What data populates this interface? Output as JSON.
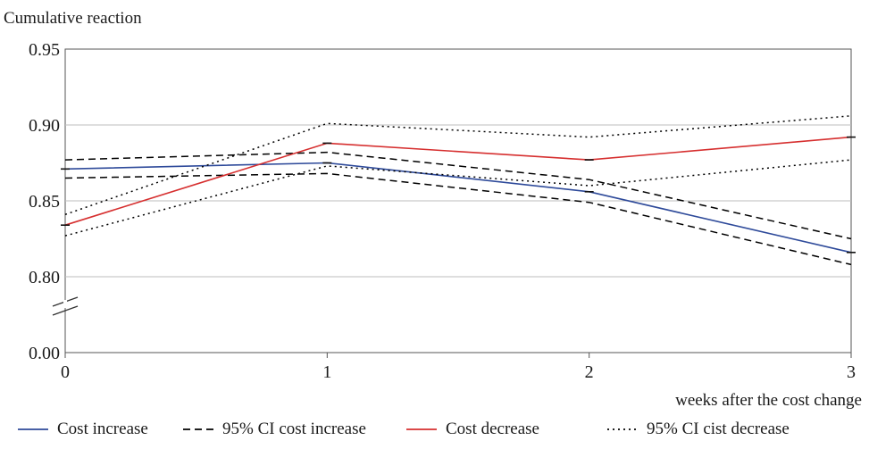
{
  "chart_data": {
    "type": "line",
    "ylabel": "Cumulative reaction",
    "xlabel": "weeks after the cost change",
    "x": [
      0,
      1,
      2,
      3
    ],
    "x_ticks": [
      "0",
      "1",
      "2",
      "3"
    ],
    "y_ticks": [
      "0.95",
      "0.90",
      "0.85",
      "0.80",
      "0.00"
    ],
    "y_tick_values": [
      0.95,
      0.9,
      0.85,
      0.8
    ],
    "ylim": [
      0.75,
      0.95
    ],
    "axis_break": true,
    "grid": true,
    "legend_position": "bottom",
    "series": [
      {
        "name": "Cost increase",
        "color": "#2e4a9a",
        "style": "solid",
        "values": [
          0.871,
          0.875,
          0.856,
          0.816
        ]
      },
      {
        "name": "95% CI cost increase",
        "color": "#000000",
        "style": "dashed",
        "values": [
          0.877,
          0.882,
          0.864,
          0.825
        ]
      },
      {
        "name": "95% CI cost increase",
        "color": "#000000",
        "style": "dashed",
        "legend": false,
        "values": [
          0.865,
          0.868,
          0.849,
          0.808
        ]
      },
      {
        "name": "Cost decrease",
        "color": "#d62f2f",
        "style": "solid",
        "values": [
          0.834,
          0.888,
          0.877,
          0.892
        ]
      },
      {
        "name": "95% CI cist decrease",
        "color": "#000000",
        "style": "dotted",
        "values": [
          0.841,
          0.901,
          0.892,
          0.906
        ]
      },
      {
        "name": "95% CI cist decrease",
        "color": "#000000",
        "style": "dotted",
        "legend": false,
        "values": [
          0.827,
          0.873,
          0.86,
          0.877
        ]
      }
    ]
  }
}
